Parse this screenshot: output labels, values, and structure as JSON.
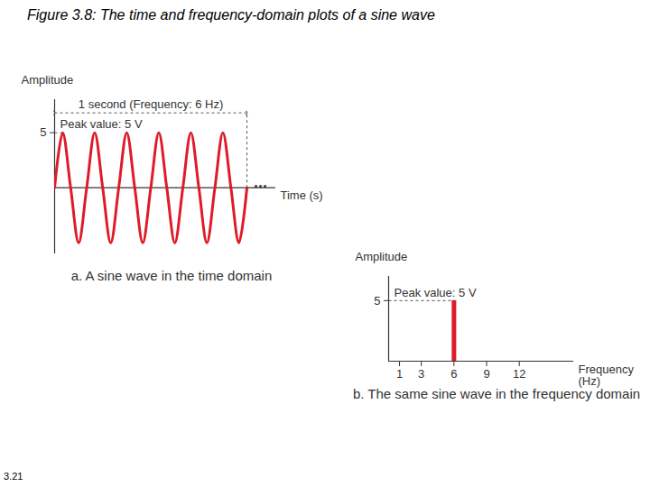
{
  "title": "Figure 3.8: The time and frequency-domain plots of a sine wave",
  "page_number": "3.21",
  "chart_data": [
    {
      "type": "line",
      "caption": "a. A sine wave in the time domain",
      "ylabel": "Amplitude",
      "xlabel": "Time (s)",
      "x": [
        0,
        0.0417,
        0.0833,
        0.125,
        0.1667,
        0.2083,
        0.25,
        0.2917,
        0.3333,
        0.375,
        0.4167,
        0.4583,
        0.5,
        0.5417,
        0.5833,
        0.625,
        0.6667,
        0.7083,
        0.75,
        0.7917,
        0.8333,
        0.875,
        0.9167,
        0.9583,
        1.0
      ],
      "values": [
        0,
        5,
        0,
        -5,
        0,
        5,
        0,
        -5,
        0,
        5,
        0,
        -5,
        0,
        5,
        0,
        -5,
        0,
        5,
        0,
        -5,
        0,
        5,
        0,
        -5,
        0
      ],
      "color": "#dd1c2a",
      "xlim": [
        0,
        1.15
      ],
      "ylim": [
        -6,
        8
      ],
      "yticks": [
        5
      ],
      "tick_labels": "y",
      "annotations": [
        {
          "text": "1 second (Frequency: 6 Hz)",
          "x": [
            0,
            1
          ]
        },
        {
          "text": "Peak value: 5 V",
          "y": 5
        },
        {
          "text": "...",
          "x": 1.07,
          "y": 0
        }
      ]
    },
    {
      "type": "bar",
      "caption": "b. The same sine wave in the frequency domain",
      "ylabel": "Amplitude",
      "xlabel": "Frequency (Hz)",
      "x": [
        6
      ],
      "values": [
        5
      ],
      "color": "#dd1c2a",
      "xlim": [
        0,
        17
      ],
      "ylim": [
        0,
        7
      ],
      "xticks": [
        1,
        3,
        6,
        9,
        12
      ],
      "yticks": [
        5
      ],
      "annotations": [
        {
          "text": "Peak value: 5 V",
          "y": 5
        }
      ]
    }
  ]
}
